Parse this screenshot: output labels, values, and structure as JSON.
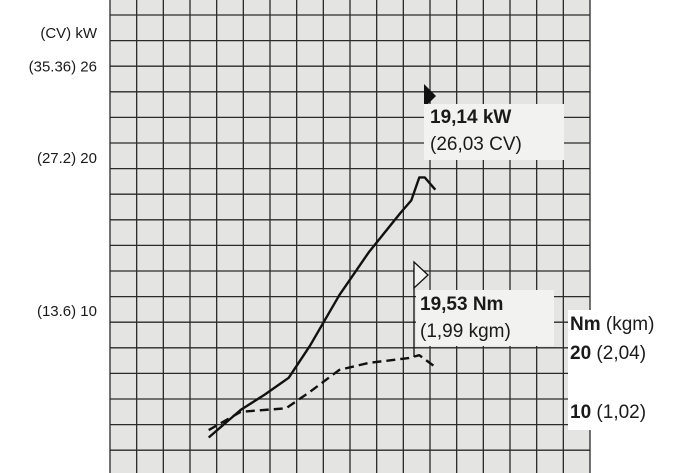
{
  "chart_data": {
    "type": "line",
    "y_label": "(CV) kW",
    "y2_label": "Nm",
    "y2_label_unit": "(kgm)",
    "xlim": [
      0,
      18
    ],
    "ylim": [
      0,
      30.4
    ],
    "yticks": [
      {
        "value": 10,
        "label": "(13.6) 10"
      },
      {
        "value": 20,
        "label": "(27.2) 20"
      },
      {
        "value": 26,
        "label": "(35.36) 26"
      }
    ],
    "y2lim": [
      0,
      80
    ],
    "y2ticks": [
      {
        "value": 20,
        "label": "20",
        "note": "(2,04)"
      },
      {
        "value": 10,
        "label": "10",
        "note": "(1,02)"
      }
    ],
    "series": [
      {
        "name": "kW",
        "color": "#111111",
        "dash": false,
        "x": [
          3.7,
          4.9,
          5.8,
          6.7,
          7.5,
          8.6,
          9.7,
          10.9,
          11.3,
          11.6,
          11.8,
          12.2
        ],
        "values": [
          1.8,
          3.6,
          4.6,
          5.7,
          7.8,
          11.1,
          13.9,
          16.5,
          17.3,
          18.8,
          18.8,
          18.0
        ]
      },
      {
        "name": "Nm",
        "color": "#111111",
        "dash": true,
        "axis": "y2",
        "x": [
          3.7,
          4.9,
          6.6,
          7.5,
          8.6,
          9.7,
          11.2,
          11.6,
          12.2
        ],
        "values": [
          7.1,
          10.2,
          10.8,
          13.6,
          17.3,
          18.5,
          19.3,
          19.8,
          17.8
        ]
      }
    ],
    "annotations": [
      {
        "label": "19,14 kW",
        "note": "(26,03 CV)"
      },
      {
        "label": "19,53 Nm",
        "note": "(1,99 kgm)"
      }
    ]
  }
}
